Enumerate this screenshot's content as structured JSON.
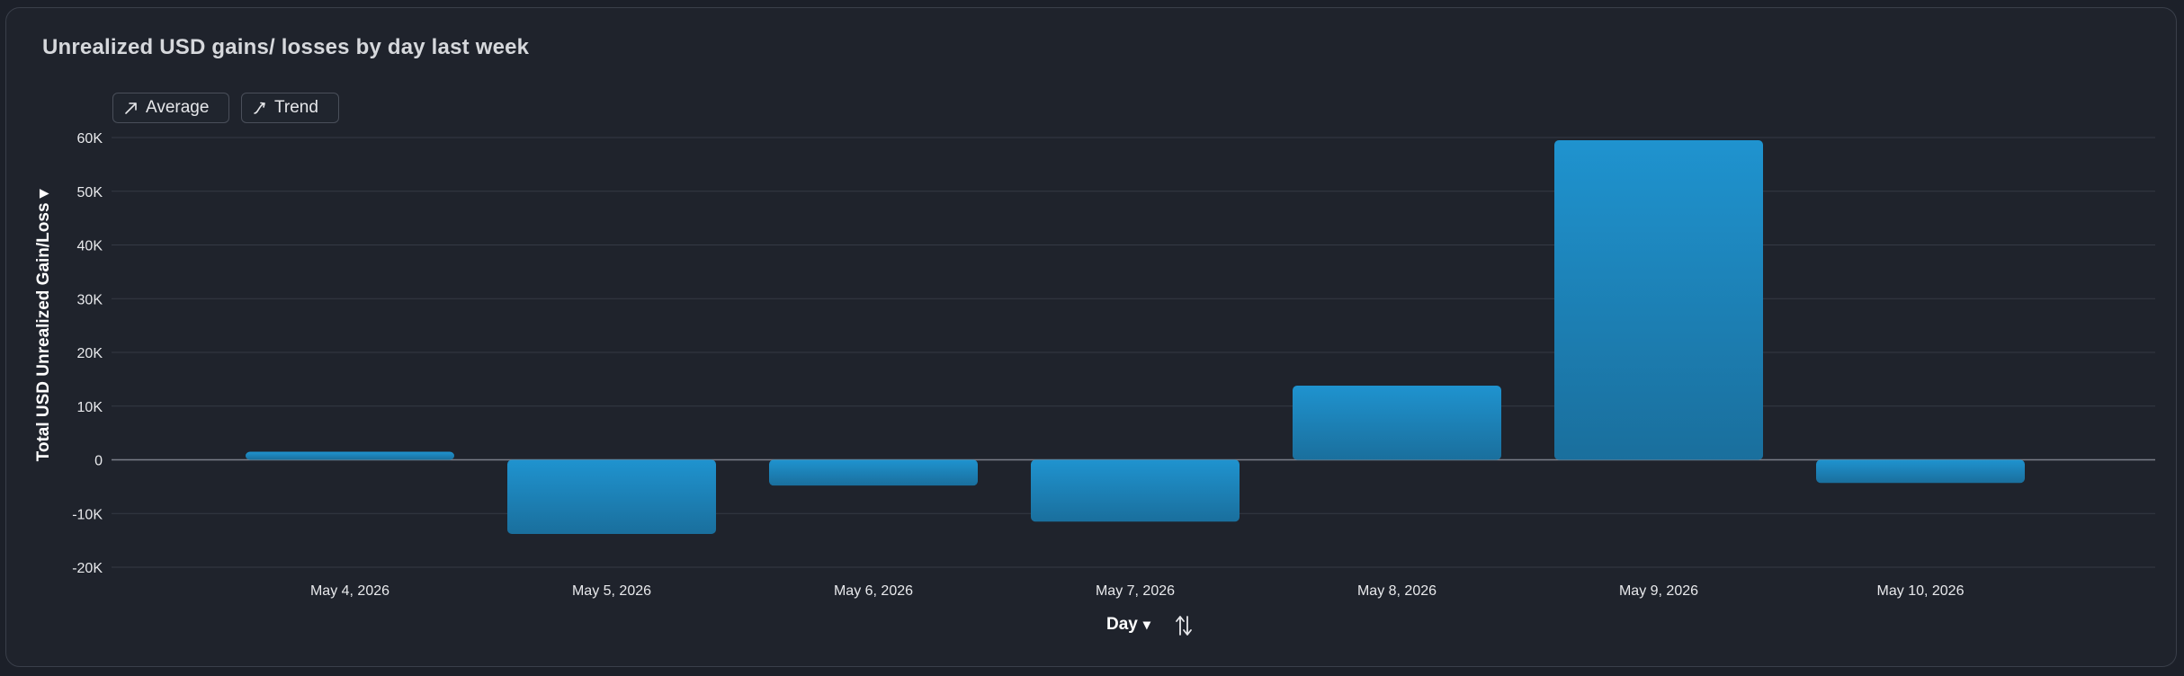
{
  "title": "Unrealized USD gains/ losses by day last week",
  "controls": {
    "average_label": "Average",
    "average_icon": "arrow-up-right-icon",
    "trend_label": "Trend",
    "trend_icon": "trend-curve-icon"
  },
  "colors": {
    "background": "#1f232c",
    "bar_top": "#1f93cf",
    "bar_bottom": "#1a6f9d",
    "grid": "#353a45",
    "zero_line": "#7a7f89",
    "tick_text": "#e8e9ec"
  },
  "chart_data": {
    "type": "bar",
    "categories": [
      "May 4, 2026",
      "May 5, 2026",
      "May 6, 2026",
      "May 7, 2026",
      "May 8, 2026",
      "May 9, 2026",
      "May 10, 2026"
    ],
    "values": [
      1500,
      -13800,
      -4800,
      -11500,
      13800,
      59500,
      -4300
    ],
    "ylim": [
      -20000,
      60000
    ],
    "yticks": [
      60000,
      50000,
      40000,
      30000,
      20000,
      10000,
      0,
      -10000,
      -20000
    ],
    "ytick_labels": [
      "60K",
      "50K",
      "40K",
      "30K",
      "20K",
      "10K",
      "0",
      "-10K",
      "-20K"
    ],
    "ylabel": "Total USD Unrealized Gain/Loss",
    "ylabel_dropdown": "▾",
    "xlabel": "Day",
    "xlabel_dropdown": "▾",
    "grid": true
  }
}
